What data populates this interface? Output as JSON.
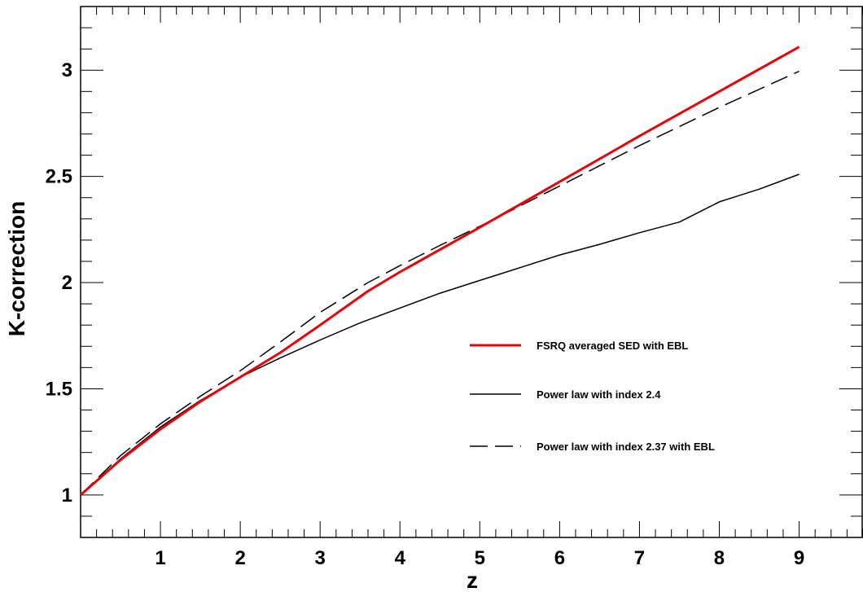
{
  "chart_data": {
    "type": "line",
    "xlabel": "z",
    "ylabel": "K-correction",
    "xlim": [
      0,
      9.8
    ],
    "ylim": [
      0.8,
      3.3
    ],
    "x_ticks": [
      1,
      2,
      3,
      4,
      5,
      6,
      7,
      8,
      9
    ],
    "y_ticks": [
      1,
      1.5,
      2,
      2.5,
      3
    ],
    "y_tick_labels": [
      "1",
      "1.5",
      "2",
      "2.5",
      "3"
    ],
    "grid": false,
    "legend_position": "center-right",
    "series": [
      {
        "name": "FSRQ averaged SED with EBL",
        "color": "#e8000b",
        "style": "solid-thick",
        "x": [
          0,
          0.5,
          1,
          1.5,
          2,
          2.5,
          3,
          3.6,
          4,
          5,
          6,
          7,
          8,
          9
        ],
        "y": [
          1.0,
          1.165,
          1.31,
          1.44,
          1.555,
          1.67,
          1.8,
          1.96,
          2.05,
          2.26,
          2.475,
          2.69,
          2.9,
          3.11
        ]
      },
      {
        "name": "Power law with index 2.4",
        "color": "#000000",
        "style": "solid",
        "x": [
          0,
          0.5,
          1,
          1.5,
          2,
          2.5,
          3,
          3.5,
          4,
          4.5,
          5,
          5.5,
          6,
          6.5,
          7,
          7.5,
          8,
          8.5,
          9
        ],
        "y": [
          1.0,
          1.17,
          1.32,
          1.445,
          1.555,
          1.645,
          1.73,
          1.81,
          1.88,
          1.95,
          2.01,
          2.07,
          2.13,
          2.18,
          2.235,
          2.285,
          2.38,
          2.44,
          2.51
        ]
      },
      {
        "name": "Power law with index 2.37 with EBL",
        "color": "#000000",
        "style": "dashed",
        "x": [
          0,
          0.5,
          1,
          1.5,
          2,
          2.5,
          3,
          3.6,
          4,
          4.5,
          5,
          5.5,
          6,
          6.5,
          7,
          7.5,
          8,
          8.5,
          9
        ],
        "y": [
          1.0,
          1.185,
          1.335,
          1.465,
          1.585,
          1.72,
          1.86,
          2.0,
          2.08,
          2.175,
          2.265,
          2.36,
          2.455,
          2.55,
          2.645,
          2.735,
          2.825,
          2.91,
          2.995
        ]
      }
    ]
  }
}
